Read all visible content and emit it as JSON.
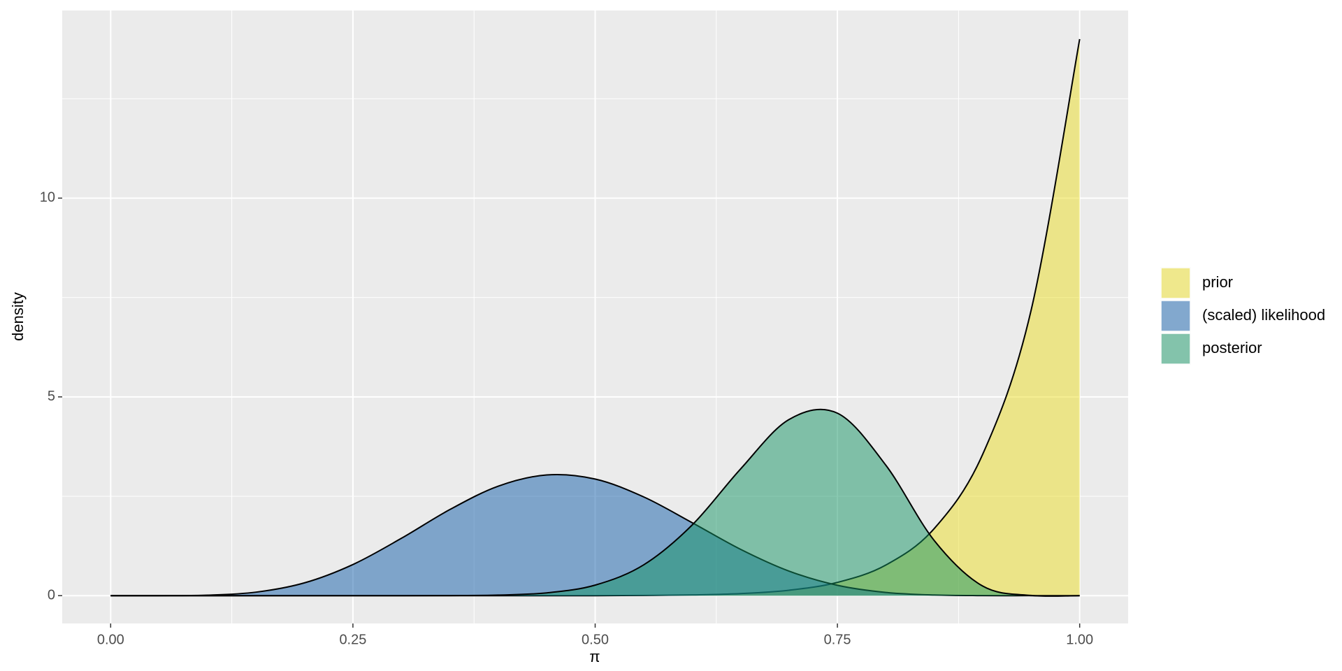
{
  "chart_data": {
    "type": "area",
    "x_label": "π",
    "y_label": "density",
    "x": [
      0,
      0.05,
      0.1,
      0.15,
      0.2,
      0.25,
      0.3,
      0.35,
      0.4,
      0.45,
      0.5,
      0.55,
      0.6,
      0.65,
      0.7,
      0.75,
      0.8,
      0.85,
      0.9,
      0.95,
      1
    ],
    "series": [
      {
        "name": "prior",
        "color": "#ebdd25",
        "values": [
          0,
          0,
          0,
          0,
          0,
          0,
          0,
          0,
          0,
          0,
          0,
          0.006,
          0.018,
          0.052,
          0.136,
          0.333,
          0.77,
          1.69,
          3.56,
          7.19,
          14
        ]
      },
      {
        "name": "(scaled) likelihood",
        "color": "#115da9",
        "values": [
          0,
          0,
          0.012,
          0.088,
          0.322,
          0.783,
          1.442,
          2.165,
          2.754,
          3.036,
          2.933,
          2.485,
          1.837,
          1.166,
          0.618,
          0.261,
          0.081,
          0.016,
          0.001,
          0,
          0
        ]
      },
      {
        "name": "posterior",
        "color": "#139363",
        "values": [
          0,
          0,
          0,
          0,
          0,
          0,
          0,
          0.002,
          0.014,
          0.07,
          0.265,
          0.774,
          1.775,
          3.185,
          4.43,
          4.59,
          3.28,
          1.384,
          0.24,
          0.005,
          0
        ]
      }
    ],
    "xlim": [
      -0.05,
      1.05
    ],
    "ylim": [
      -0.7,
      14.72
    ],
    "xticks": [
      {
        "value": 0,
        "label": "0.00"
      },
      {
        "value": 0.25,
        "label": "0.25"
      },
      {
        "value": 0.5,
        "label": "0.50"
      },
      {
        "value": 0.75,
        "label": "0.75"
      },
      {
        "value": 1,
        "label": "1.00"
      }
    ],
    "yticks": [
      0,
      5,
      10
    ],
    "xticks_minor": [
      0.125,
      0.375,
      0.625,
      0.875
    ],
    "yticks_minor": [
      2.5,
      7.5,
      12.5
    ],
    "grid": true,
    "fill_opacity": 0.5,
    "legend": "right"
  }
}
